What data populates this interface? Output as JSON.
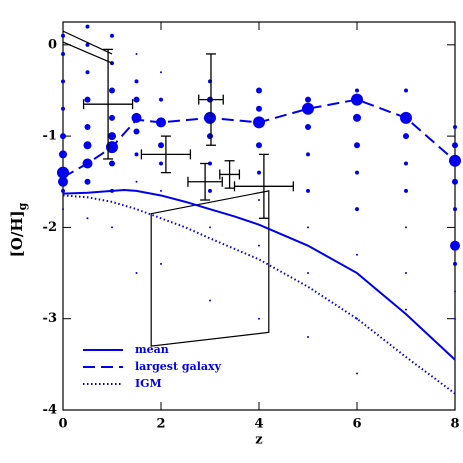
{
  "chart_data": {
    "type": "line",
    "xlabel": "z",
    "ylabel": "[O/H]",
    "ylabel_subscript": "g",
    "xlim": [
      0,
      8
    ],
    "ylim": [
      -4,
      0.25
    ],
    "xticks": [
      0,
      2,
      4,
      6,
      8
    ],
    "yticks": [
      0,
      -1,
      -2,
      -3,
      -4
    ],
    "legend_position": "lower left",
    "series": [
      {
        "name": "mean",
        "color": "#0000ee",
        "style": "solid",
        "x": [
          0,
          0.5,
          1,
          1.25,
          1.5,
          2,
          2.5,
          3,
          3.5,
          4,
          5,
          6,
          7,
          8
        ],
        "values": [
          -1.63,
          -1.62,
          -1.6,
          -1.59,
          -1.6,
          -1.65,
          -1.72,
          -1.8,
          -1.88,
          -1.97,
          -2.2,
          -2.5,
          -2.95,
          -3.45
        ]
      },
      {
        "name": "largest galaxy",
        "color": "#0000ee",
        "style": "dashed",
        "x": [
          0,
          0.5,
          1,
          1.5,
          2,
          3,
          4,
          5,
          6,
          7,
          8
        ],
        "values": [
          -1.45,
          -1.3,
          -1.12,
          -0.82,
          -0.85,
          -0.8,
          -0.85,
          -0.7,
          -0.6,
          -0.8,
          -1.27
        ]
      },
      {
        "name": "IGM",
        "color": "#0000ee",
        "style": "dotted",
        "x": [
          0,
          0.5,
          1,
          1.5,
          2,
          2.5,
          3,
          4,
          5,
          6,
          7,
          8
        ],
        "values": [
          -1.65,
          -1.67,
          -1.72,
          -1.8,
          -1.9,
          -2.0,
          -2.12,
          -2.35,
          -2.65,
          -3.0,
          -3.42,
          -3.82
        ]
      }
    ],
    "galaxies": {
      "color": "#0000ee",
      "x": [
        0,
        0,
        0,
        0,
        0,
        0,
        0,
        0,
        0,
        0,
        0.5,
        0.5,
        0.5,
        0.5,
        0.5,
        0.5,
        0.5,
        0.5,
        0.5,
        1,
        1,
        1,
        1,
        1,
        1,
        1,
        1,
        1,
        1.5,
        1.5,
        1.5,
        1.5,
        1.5,
        1.5,
        1.5,
        1.5,
        2,
        2,
        2,
        2,
        2,
        2,
        2,
        3,
        3,
        3,
        3,
        3,
        3,
        3,
        3,
        4,
        4,
        4,
        4,
        4,
        4,
        4,
        4,
        5,
        5,
        5,
        5,
        5,
        5,
        5,
        5,
        6,
        6,
        6,
        6,
        6,
        6,
        6,
        6,
        6,
        7,
        7,
        7,
        7,
        7,
        7,
        7,
        7,
        8,
        8,
        8,
        8,
        8,
        8,
        8,
        8,
        8
      ],
      "values": [
        0.1,
        -0.1,
        -0.4,
        -0.7,
        -1.0,
        -1.2,
        -1.4,
        -1.5,
        -1.6,
        -1.8,
        0.2,
        0,
        -0.3,
        -0.6,
        -0.9,
        -1.1,
        -1.3,
        -1.5,
        -1.9,
        0.1,
        -0.2,
        -0.5,
        -0.8,
        -1.0,
        -1.12,
        -1.3,
        -1.6,
        -2.0,
        -0.1,
        -0.4,
        -0.6,
        -0.8,
        -0.95,
        -1.2,
        -1.5,
        -2.5,
        -0.3,
        -0.6,
        -0.85,
        -1.1,
        -1.3,
        -1.6,
        -2.4,
        -0.4,
        -0.6,
        -0.8,
        -1.0,
        -1.3,
        -1.6,
        -2.0,
        -2.8,
        -0.5,
        -0.7,
        -0.85,
        -1.1,
        -1.4,
        -1.7,
        -2.2,
        -3.0,
        -0.6,
        -0.7,
        -0.9,
        -1.2,
        -1.6,
        -2.0,
        -2.5,
        -3.2,
        -0.5,
        -0.6,
        -0.8,
        -1.1,
        -1.4,
        -1.8,
        -2.3,
        -3.0,
        -3.6,
        -0.5,
        -0.8,
        -1.0,
        -1.3,
        -1.6,
        -2.0,
        -2.5,
        -2.9,
        -0.9,
        -1.1,
        -1.27,
        -1.5,
        -1.8,
        -2.2,
        -2.4,
        -2.7,
        -3.0
      ],
      "size": [
        2,
        2,
        2,
        2,
        3,
        4,
        6,
        5,
        2,
        1,
        2,
        2,
        2,
        3,
        3,
        4,
        5,
        3,
        1,
        2,
        2,
        3,
        3,
        4,
        6,
        3,
        2,
        1,
        1,
        2,
        3,
        5,
        3,
        2,
        1,
        1,
        1,
        2,
        5,
        3,
        2,
        1,
        1,
        2,
        3,
        6,
        3,
        2,
        2,
        1,
        1,
        3,
        3,
        6,
        3,
        2,
        1,
        1,
        1,
        3,
        6,
        3,
        2,
        2,
        1,
        1,
        1,
        2,
        6,
        4,
        3,
        2,
        2,
        1,
        1,
        1,
        2,
        6,
        3,
        2,
        2,
        1,
        1,
        1,
        2,
        3,
        6,
        3,
        2,
        5,
        2,
        1,
        1
      ]
    },
    "observations": {
      "color": "#000000",
      "x": [
        0.92,
        2.1,
        3.02,
        2.9,
        3.4,
        4.1
      ],
      "values": [
        -0.65,
        -1.2,
        -0.6,
        -1.5,
        -1.42,
        -1.55
      ],
      "xerr": [
        0.5,
        0.5,
        0.25,
        0.35,
        0.2,
        0.6
      ],
      "yerr": [
        0.6,
        0.2,
        0.5,
        0.2,
        0.15,
        0.35
      ]
    },
    "regions": [
      {
        "x": [
          1.8,
          4.2,
          4.2,
          1.8
        ],
        "values": [
          -1.85,
          -1.6,
          -3.15,
          -3.3
        ],
        "closed": true
      },
      {
        "x": [
          0,
          1
        ],
        "values": [
          0.15,
          -0.1
        ],
        "closed": false
      },
      {
        "x": [
          0,
          1
        ],
        "values": [
          0.03,
          -0.2
        ],
        "closed": false
      }
    ]
  }
}
